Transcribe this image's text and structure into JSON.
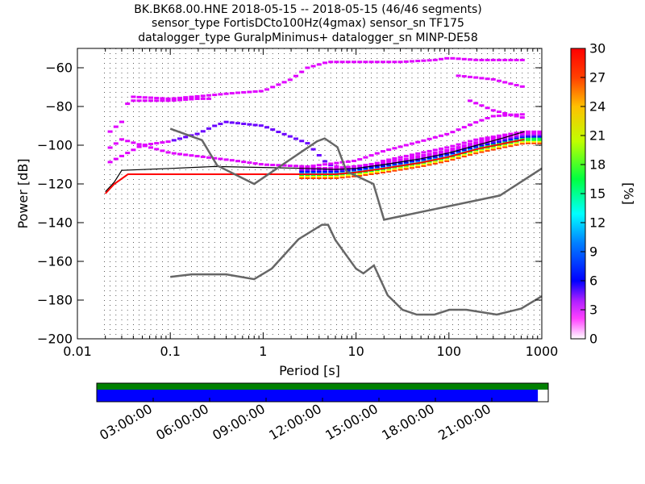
{
  "figure": {
    "title_lines": [
      "BK.BK68.00.HNE   2018-05-15 -- 2018-05-15  (46/46 segments)",
      "sensor_type FortisDCto100Hz(4gmax) sensor_sn TF175",
      "datalogger_type GuralpMinimus+ datalogger_sn MINP-DE58"
    ]
  },
  "chart_data": {
    "type": "heatmap",
    "title": "BK.BK68.00.HNE   2018-05-15 -- 2018-05-15  (46/46 segments)",
    "xlabel": "Period [s]",
    "ylabel": "Power [dB]",
    "xscale": "log",
    "xlim": [
      0.01,
      1000
    ],
    "ylim": [
      -200,
      -50
    ],
    "grid": false,
    "x_ticks": [
      "0.01",
      "0.1",
      "1",
      "10",
      "100",
      "1000"
    ],
    "x_tick_values": [
      0.01,
      0.1,
      1,
      10,
      100,
      1000
    ],
    "y_ticks": [
      "−200",
      "−180",
      "−160",
      "−140",
      "−120",
      "−100",
      "−80",
      "−60"
    ],
    "y_tick_values": [
      -200,
      -180,
      -160,
      -140,
      -120,
      -100,
      -80,
      -60
    ],
    "colorbar": {
      "label": "[%]",
      "range": [
        0,
        30
      ],
      "ticks": [
        "0",
        "3",
        "6",
        "9",
        "12",
        "15",
        "18",
        "21",
        "24",
        "27",
        "30"
      ],
      "tick_values": [
        0,
        3,
        6,
        9,
        12,
        15,
        18,
        21,
        24,
        27,
        30
      ]
    },
    "noise_models": [
      {
        "name": "NHNM",
        "color": "#666666",
        "points": [
          [
            0.1,
            -91.5
          ],
          [
            0.22,
            -97.4
          ],
          [
            0.32,
            -110.5
          ],
          [
            0.8,
            -120
          ],
          [
            3.8,
            -98
          ],
          [
            4.6,
            -96.5
          ],
          [
            6.3,
            -101
          ],
          [
            7.9,
            -113.5
          ],
          [
            15.4,
            -120
          ],
          [
            20,
            -138.5
          ],
          [
            354,
            -126
          ],
          [
            1000,
            -112
          ]
        ]
      },
      {
        "name": "NLNM",
        "color": "#666666",
        "points": [
          [
            0.1,
            -168
          ],
          [
            0.17,
            -166.7
          ],
          [
            0.4,
            -166.7
          ],
          [
            0.8,
            -169.2
          ],
          [
            1.24,
            -163.7
          ],
          [
            2.4,
            -148.6
          ],
          [
            4.3,
            -141.1
          ],
          [
            5,
            -141.1
          ],
          [
            6,
            -149
          ],
          [
            10,
            -163.8
          ],
          [
            12,
            -166.2
          ],
          [
            15.6,
            -162.1
          ],
          [
            21.9,
            -177.5
          ],
          [
            31.6,
            -185
          ],
          [
            45,
            -187.5
          ],
          [
            70,
            -187.5
          ],
          [
            101,
            -185
          ],
          [
            154,
            -185
          ],
          [
            328,
            -187.5
          ],
          [
            600,
            -184.4
          ],
          [
            1000,
            -178
          ]
        ]
      }
    ],
    "statistic_lines": [
      {
        "name": "mode",
        "color": "#ff0000",
        "points": [
          [
            0.02,
            -125
          ],
          [
            0.025,
            -120
          ],
          [
            0.035,
            -115
          ],
          [
            0.1,
            -115
          ],
          [
            0.3,
            -115
          ],
          [
            1,
            -115
          ],
          [
            3,
            -115
          ],
          [
            6,
            -115
          ],
          [
            10,
            -114
          ],
          [
            20,
            -112
          ],
          [
            50,
            -109
          ],
          [
            100,
            -106
          ],
          [
            200,
            -102
          ],
          [
            400,
            -99
          ],
          [
            650,
            -97
          ]
        ]
      },
      {
        "name": "mean",
        "color": "#000000",
        "points": [
          [
            0.02,
            -124
          ],
          [
            0.025,
            -119
          ],
          [
            0.03,
            -113
          ],
          [
            0.1,
            -112
          ],
          [
            0.3,
            -111
          ],
          [
            1,
            -111.5
          ],
          [
            3,
            -112
          ],
          [
            6,
            -112.5
          ],
          [
            10,
            -112
          ],
          [
            20,
            -110
          ],
          [
            50,
            -107
          ],
          [
            100,
            -104
          ],
          [
            200,
            -100
          ],
          [
            400,
            -96
          ],
          [
            650,
            -93
          ]
        ]
      }
    ],
    "probability_traces": [
      {
        "name": "upper",
        "points": [
          [
            0.02,
            -95
          ],
          [
            0.03,
            -88
          ],
          [
            0.035,
            -78
          ],
          [
            0.04,
            -75
          ],
          [
            0.1,
            -76
          ],
          [
            0.3,
            -74
          ],
          [
            0.5,
            -73
          ],
          [
            1,
            -72
          ],
          [
            2,
            -66
          ],
          [
            3,
            -60
          ],
          [
            5,
            -57
          ],
          [
            10,
            -57
          ],
          [
            30,
            -57
          ],
          [
            70,
            -56
          ],
          [
            100,
            -55
          ],
          [
            200,
            -56
          ],
          [
            650,
            -56
          ]
        ]
      },
      {
        "name": "upper-secondary",
        "points": [
          [
            0.04,
            -77
          ],
          [
            0.1,
            -77
          ],
          [
            0.2,
            -76
          ],
          [
            0.3,
            -76
          ]
        ]
      },
      {
        "name": "upper-right",
        "points": [
          [
            120,
            -64
          ],
          [
            300,
            -66
          ],
          [
            650,
            -70
          ]
        ]
      },
      {
        "name": "upper-mid-right",
        "points": [
          [
            150,
            -76
          ],
          [
            300,
            -82
          ],
          [
            650,
            -86
          ]
        ]
      },
      {
        "name": "high-rising",
        "points": [
          [
            0.02,
            -110
          ],
          [
            0.05,
            -100
          ],
          [
            0.1,
            -98
          ],
          [
            0.2,
            -94
          ],
          [
            0.3,
            -90
          ],
          [
            0.4,
            -88
          ],
          [
            1,
            -90
          ],
          [
            3,
            -99
          ],
          [
            5,
            -110
          ],
          [
            10,
            -113
          ],
          [
            20,
            -108
          ],
          [
            50,
            -104
          ],
          [
            100,
            -101
          ],
          [
            200,
            -97
          ],
          [
            650,
            -93
          ]
        ]
      },
      {
        "name": "mid-hump",
        "points": [
          [
            0.02,
            -103
          ],
          [
            0.03,
            -97
          ],
          [
            0.05,
            -100
          ],
          [
            0.1,
            -104
          ],
          [
            0.5,
            -108
          ],
          [
            1,
            -110
          ],
          [
            3,
            -111
          ],
          [
            10,
            -108
          ],
          [
            20,
            -103
          ],
          [
            50,
            -98
          ],
          [
            100,
            -94
          ],
          [
            200,
            -88
          ],
          [
            300,
            -85
          ],
          [
            650,
            -84
          ]
        ]
      }
    ],
    "timeline": {
      "tick_labels": [
        "03:00:00",
        "06:00:00",
        "09:00:00",
        "12:00:00",
        "15:00:00",
        "18:00:00",
        "21:00:00"
      ],
      "tick_hours": [
        3,
        6,
        9,
        12,
        15,
        18,
        21
      ],
      "coverage_fraction": 0.977,
      "colors": {
        "available": "#0000ff",
        "gap": "#ffffff",
        "header": "#008000"
      }
    }
  }
}
